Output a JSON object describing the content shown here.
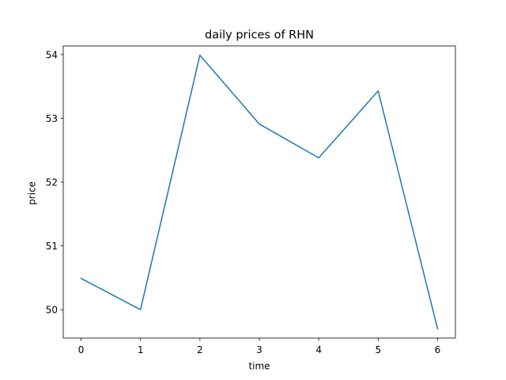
{
  "chart_data": {
    "type": "line",
    "title": "daily prices of RHN",
    "xlabel": "time",
    "ylabel": "price",
    "x": [
      0,
      1,
      2,
      3,
      4,
      5,
      6
    ],
    "series": [
      {
        "values": [
          50.49,
          50.0,
          53.99,
          52.91,
          52.38,
          53.43,
          49.7
        ],
        "color": "#1f77b4"
      }
    ],
    "xlim": [
      -0.3,
      6.3
    ],
    "ylim": [
      49.555,
      54.135
    ],
    "xticks": [
      0,
      1,
      2,
      3,
      4,
      5,
      6
    ],
    "xtick_labels": [
      "0",
      "1",
      "2",
      "3",
      "4",
      "5",
      "6"
    ],
    "yticks": [
      50,
      51,
      52,
      53,
      54
    ],
    "ytick_labels": [
      "50",
      "51",
      "52",
      "53",
      "54"
    ],
    "grid": false,
    "legend": "none"
  }
}
